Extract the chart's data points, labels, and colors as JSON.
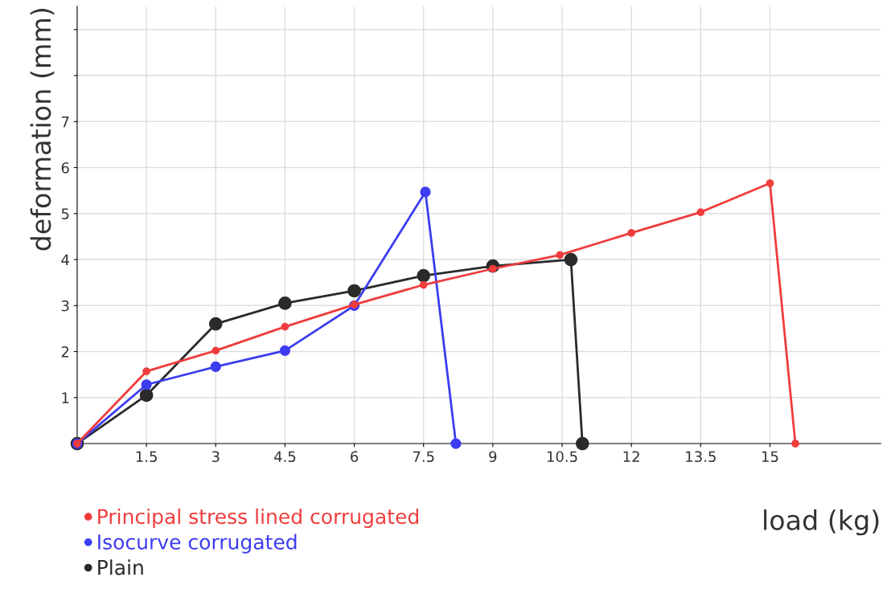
{
  "chart_data": {
    "type": "line",
    "xlabel": "load (kg)",
    "ylabel": "deformation (mm)",
    "xlim": [
      0,
      17.4
    ],
    "ylim": [
      0,
      9.5
    ],
    "xticks": [
      1.5,
      3,
      4.5,
      6,
      7.5,
      9,
      10.5,
      12,
      13.5,
      15
    ],
    "yticks": [
      1,
      2,
      3,
      4,
      5,
      6,
      7,
      {
        "value": 8,
        "label": null
      },
      {
        "value": 9,
        "label": null
      }
    ],
    "grid": true,
    "legend": "bottom left",
    "marker": "circle",
    "line_style": "solid",
    "series": [
      {
        "name": "Principal stress lined corrugated",
        "color": "#f03c3c",
        "x": [
          0,
          1.5,
          3,
          4.5,
          6,
          7.5,
          9,
          10.45,
          12,
          13.5,
          15,
          15.55
        ],
        "values": [
          0,
          1.57,
          2.02,
          2.54,
          3.02,
          3.45,
          3.8,
          4.1,
          4.58,
          5.03,
          5.66,
          0
        ]
      },
      {
        "name": "Isocurve corrugated",
        "color": "#3c3cf0",
        "x": [
          0,
          1.5,
          3,
          4.5,
          6,
          7.54,
          8.2
        ],
        "values": [
          0,
          1.28,
          1.67,
          2.02,
          3.0,
          5.47,
          0
        ]
      },
      {
        "name": "Plain",
        "color": "#2a2a2a",
        "x": [
          0,
          1.5,
          3,
          4.5,
          6,
          7.5,
          9,
          10.69,
          10.94
        ],
        "values": [
          0,
          1.05,
          2.6,
          3.05,
          3.32,
          3.65,
          3.86,
          4.0,
          0
        ]
      }
    ]
  }
}
